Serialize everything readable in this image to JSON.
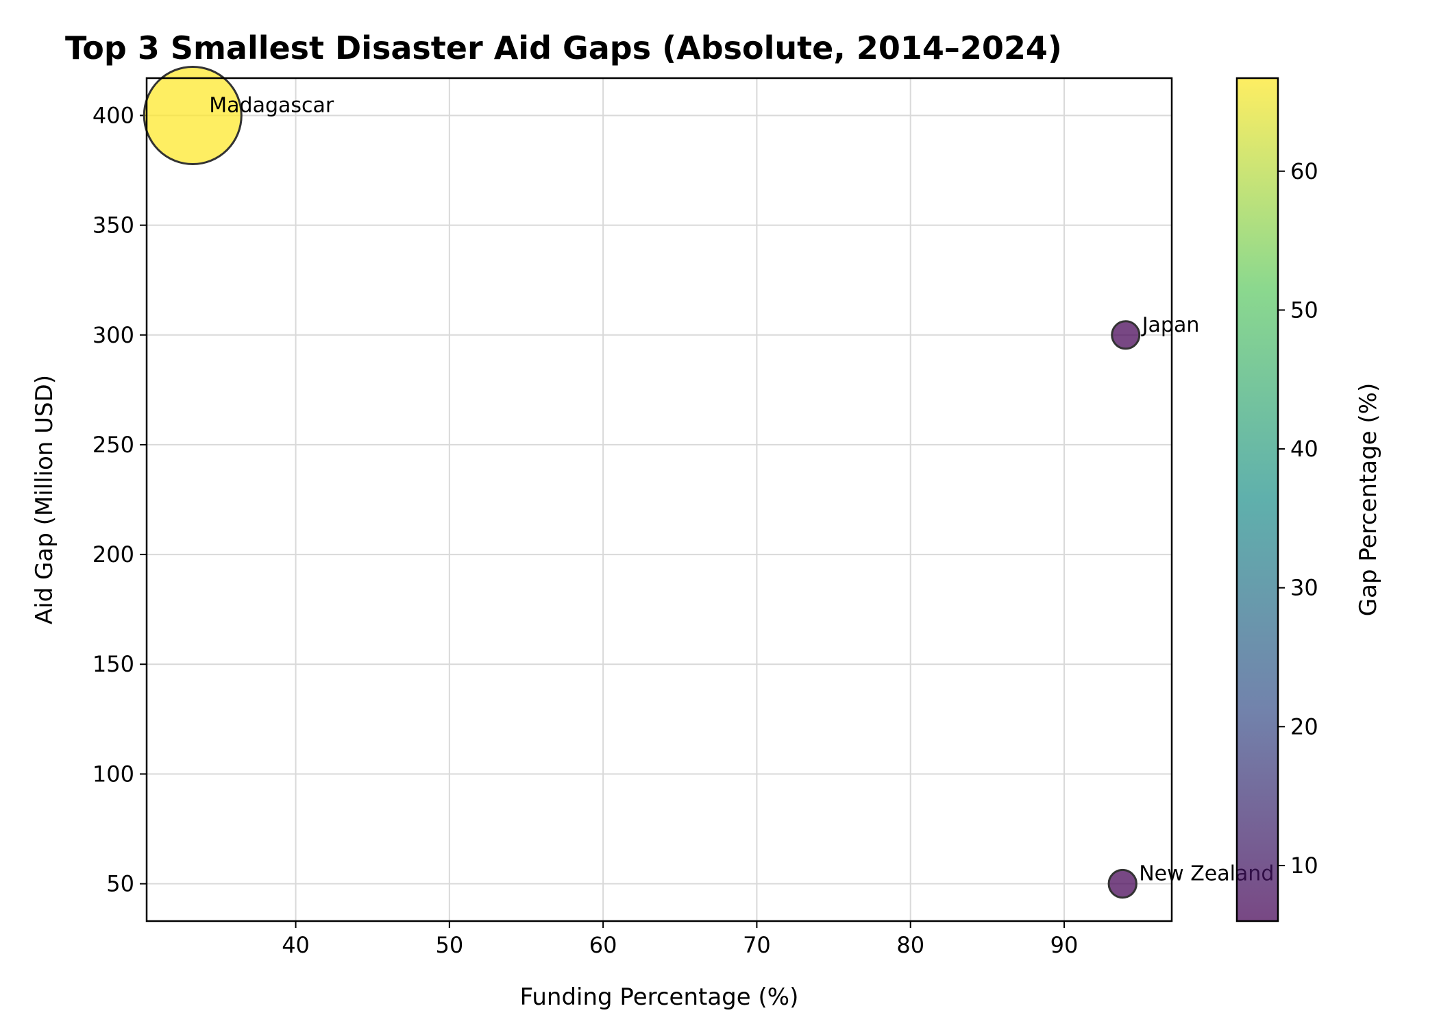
{
  "chart_data": {
    "type": "scatter",
    "title": "Top 3 Smallest Disaster Aid Gaps (Absolute, 2014–2024)",
    "xlabel": "Funding Percentage (%)",
    "ylabel": "Aid Gap (Million USD)",
    "xlim": [
      30.3,
      97
    ],
    "ylim": [
      33,
      417
    ],
    "xticks": [
      40,
      50,
      60,
      70,
      80,
      90
    ],
    "yticks": [
      50,
      100,
      150,
      200,
      250,
      300,
      350,
      400
    ],
    "grid": true,
    "points": [
      {
        "label": "Madagascar",
        "x": 33.3,
        "y": 400,
        "gap_percentage": 66.7
      },
      {
        "label": "Japan",
        "x": 94.0,
        "y": 300,
        "gap_percentage": 6.0
      },
      {
        "label": "New Zealand",
        "x": 93.8,
        "y": 50,
        "gap_percentage": 6.2
      }
    ],
    "colorbar": {
      "label": "Gap Percentage (%)",
      "colormap": "viridis",
      "range": [
        6.0,
        66.7
      ],
      "ticks": [
        10,
        20,
        30,
        40,
        50,
        60
      ]
    },
    "colors": {
      "edge": "#333333",
      "viridis_stops": [
        "#440154",
        "#3b528b",
        "#21918c",
        "#5ec962",
        "#fde725"
      ]
    }
  }
}
